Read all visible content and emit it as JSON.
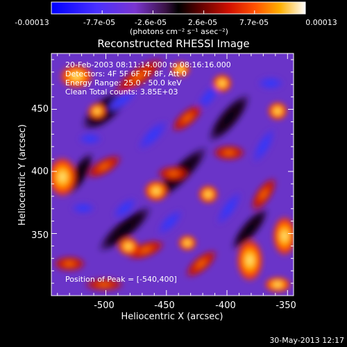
{
  "colorbar": {
    "tick_labels": [
      "-0.00013",
      "-7.7e-05",
      "-2.6e-05",
      "2.6e-05",
      "7.7e-05",
      "0.00013"
    ],
    "units_label": "(photons cm⁻² s⁻¹ asec⁻²)",
    "colors": [
      "#0000ff",
      "#2020ff",
      "#5a30ff",
      "#7a35d0",
      "#5a1f6a",
      "#000000",
      "#3a0000",
      "#b00000",
      "#ff3000",
      "#ff8c00",
      "#ffd000",
      "#ffffff"
    ]
  },
  "plot": {
    "title": "Reconstructed RHESSI Image",
    "xlabel": "Heliocentric X (arcsec)",
    "ylabel": "Heliocentric Y (arcsec)",
    "x_ticks": [
      "-500",
      "-450",
      "-400",
      "-350"
    ],
    "y_ticks": [
      "450",
      "400",
      "350"
    ],
    "xlim": [
      -545,
      -345
    ],
    "ylim": [
      300,
      495
    ]
  },
  "annotations": {
    "line1": "20-Feb-2003 08:11:14.000 to 08:16:16.000",
    "line2": "Detectors: 4F 5F 6F 7F 8F, Att 0",
    "line3": "Energy Range: 25.0 - 50.0 keV",
    "line4": "Clean     Total counts: 3.85E+03",
    "peak": "Position of Peak = [-540,400]"
  },
  "footer": {
    "timestamp": "30-May-2013 12:17"
  }
}
